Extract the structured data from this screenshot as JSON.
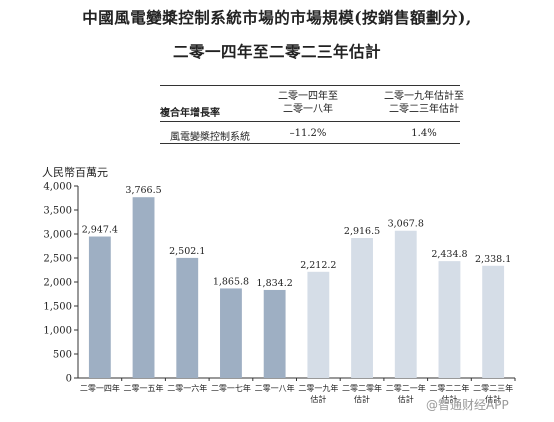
{
  "title_line1": "中國風電變槳控制系統市場的市場規模(按銷售額劃分),",
  "title_line2": "二零一四年至二零二三年估計",
  "cagr_table": {
    "header_label": "複合年增長率",
    "col1_line1": "二零一四年至",
    "col1_line2": "二零一八年",
    "col2_line1": "二零一九年估計至",
    "col2_line2": "二零二三年估計",
    "row_label": "風電變槳控制系統",
    "row_v1": "–11.2%",
    "row_v2": "1.4%"
  },
  "watermark": "@智通财经APP",
  "colors": {
    "historical": "#9eafc3",
    "estimate": "#d5dde7",
    "axis": "#333333"
  },
  "chart_data": {
    "type": "bar",
    "ylabel": "人民幣百萬元",
    "ylim": [
      0,
      4000
    ],
    "yticks": [
      "0",
      "500",
      "1,000",
      "1,500",
      "2,000",
      "2,500",
      "3,000",
      "3,500",
      "4,000"
    ],
    "categories": [
      [
        "二零一四年"
      ],
      [
        "二零一五年"
      ],
      [
        "二零一六年"
      ],
      [
        "二零一七年"
      ],
      [
        "二零一八年"
      ],
      [
        "二零一九年",
        "估計"
      ],
      [
        "二零二零年",
        "估計"
      ],
      [
        "二零二一年",
        "估計"
      ],
      [
        "二零二二年",
        "估計"
      ],
      [
        "二零二三年",
        "估計"
      ]
    ],
    "values": [
      2947.4,
      3766.5,
      2502.1,
      1865.8,
      1834.2,
      2212.2,
      2916.5,
      3067.8,
      2434.8,
      2338.1
    ],
    "labels": [
      "2,947.4",
      "3,766.5",
      "2,502.1",
      "1,865.8",
      "1,834.2",
      "2,212.2",
      "2,916.5",
      "3,067.8",
      "2,434.8",
      "2,338.1"
    ],
    "estimate": [
      false,
      false,
      false,
      false,
      false,
      true,
      true,
      true,
      true,
      true
    ],
    "grid": false
  }
}
